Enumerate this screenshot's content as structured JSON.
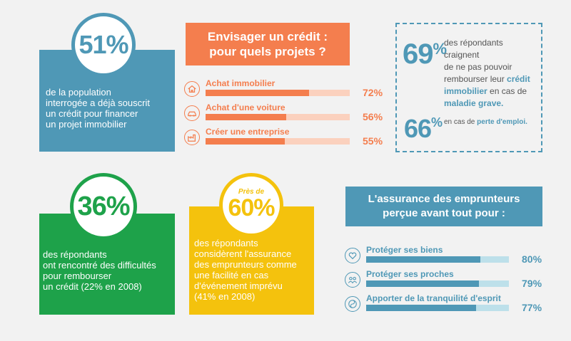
{
  "colors": {
    "blue": "#4f98b6",
    "orange": "#f47e4e",
    "orange_light": "#fbd1be",
    "green": "#1ea24a",
    "yellow": "#f4c20d",
    "blue_light": "#bde0ea",
    "background": "#f2f2f2"
  },
  "card_51": {
    "percent": "51%",
    "text_lines": [
      "de la population",
      "interrogée a déjà souscrit",
      "un crédit pour financer",
      "un projet immobilier"
    ]
  },
  "credit_projects": {
    "title_lines": [
      "Envisager un crédit :",
      "pour quels projets ?"
    ],
    "items": [
      {
        "label": "Achat immobilier",
        "value": 72,
        "value_label": "72%",
        "icon": "house-icon"
      },
      {
        "label": "Achat d'une voiture",
        "value": 56,
        "value_label": "56%",
        "icon": "car-icon"
      },
      {
        "label": "Créer une entreprise",
        "value": 55,
        "value_label": "55%",
        "icon": "factory-icon"
      }
    ]
  },
  "fear_box": {
    "percent_69": "69",
    "percent_sign": "%",
    "line1": "des répondants craignent",
    "line2": "de ne pas pouvoir",
    "line3_pre": "rembourser leur ",
    "line3_bold": "crédit",
    "line4_bold": "immobilier",
    "line4_post": " en cas de",
    "line5_bold": "maladie grave.",
    "percent_66": "66",
    "line6_pre": "en cas de ",
    "line6_bold": "perte d'emploi."
  },
  "card_36": {
    "percent": "36%",
    "text_lines": [
      "des répondants",
      "ont rencontré des difficultés",
      "pour rembourser",
      "un crédit (22% en 2008)"
    ]
  },
  "card_60": {
    "prefix": "Près de",
    "percent": "60%",
    "text_lines": [
      "des répondants",
      "considèrent l'assurance",
      "des emprunteurs comme",
      "une facilité en cas",
      "d'événement imprévu",
      "(41% en 2008)"
    ]
  },
  "insurance": {
    "title_lines": [
      "L'assurance des emprunteurs",
      "perçue avant tout pour :"
    ],
    "items": [
      {
        "label": "Protéger ses biens",
        "value": 80,
        "value_label": "80%",
        "icon": "heart-icon"
      },
      {
        "label": "Protéger ses proches",
        "value": 79,
        "value_label": "79%",
        "icon": "people-icon"
      },
      {
        "label": "Apporter de la tranquilité d'esprit",
        "value": 77,
        "value_label": "77%",
        "icon": "yin-yang-icon"
      }
    ]
  }
}
